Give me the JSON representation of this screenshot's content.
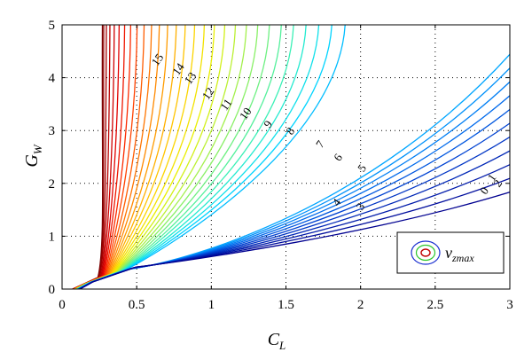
{
  "chart_data": {
    "type": "line",
    "xlabel": "C",
    "xlabel_sub": "L",
    "ylabel": "G",
    "ylabel_sub": "W",
    "xlim": [
      0,
      3
    ],
    "ylim": [
      0,
      5
    ],
    "xticks": [
      "0",
      "0.5",
      "1",
      "1.5",
      "2",
      "2.5",
      "3"
    ],
    "yticks": [
      "0",
      "1",
      "2",
      "3",
      "4",
      "5"
    ],
    "grid": true,
    "legend": {
      "symbol": "v",
      "subscript": "zmax",
      "placement": "bottom-right"
    },
    "contour_labels": [
      "15",
      "14",
      "13",
      "12",
      "11",
      "10",
      "9",
      "8",
      "7",
      "6",
      "5",
      "4",
      "3",
      "2",
      "1",
      "0"
    ],
    "colors": [
      "#7a0000",
      "#b00000",
      "#e00000",
      "#ff3000",
      "#ff7000",
      "#ffa000",
      "#ffd000",
      "#e8f000",
      "#b0f040",
      "#70f080",
      "#30f0c0",
      "#00d8ff",
      "#00a0ff",
      "#0070f0",
      "#0040d0",
      "#0020b0",
      "#000090"
    ]
  }
}
